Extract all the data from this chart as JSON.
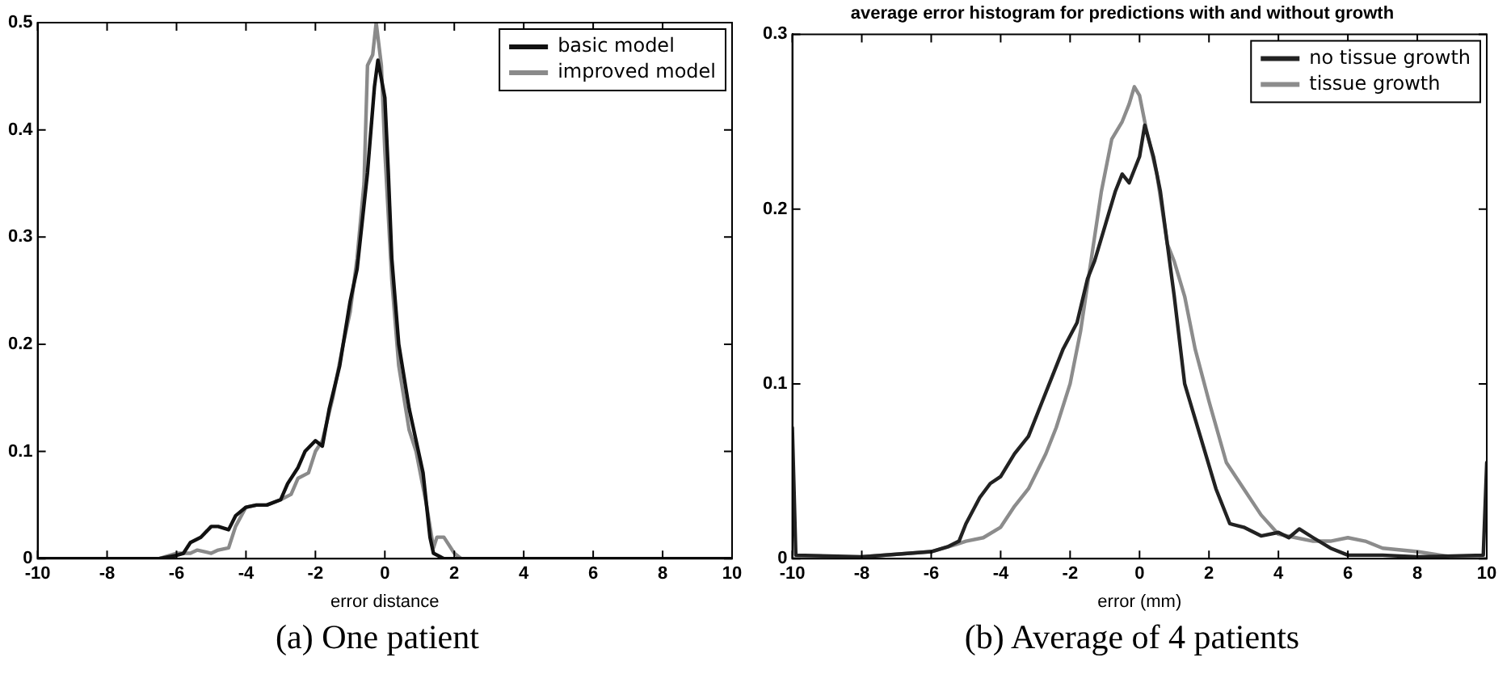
{
  "chart_data": [
    {
      "type": "line",
      "xlabel": "error distance",
      "xlim": [
        -10,
        10
      ],
      "xticks": [
        -10,
        -8,
        -6,
        -4,
        -2,
        0,
        2,
        4,
        6,
        8,
        10
      ],
      "ylim": [
        0,
        0.5
      ],
      "yticks": [
        0,
        0.1,
        0.2,
        0.3,
        0.4,
        0.5
      ],
      "grid": false,
      "legend": "top right",
      "marker": "none",
      "line_style": "solid",
      "annotations": [
        "(a) One patient"
      ],
      "series": [
        {
          "name": "basic model",
          "color": "#111111",
          "x": [
            -10,
            -6.5,
            -6,
            -5.8,
            -5.6,
            -5.3,
            -5,
            -4.8,
            -4.5,
            -4.3,
            -4,
            -3.7,
            -3.4,
            -3,
            -2.8,
            -2.5,
            -2.3,
            -2,
            -1.8,
            -1.6,
            -1.3,
            -1,
            -0.8,
            -0.5,
            -0.3,
            -0.2,
            0,
            0.1,
            0.2,
            0.4,
            0.7,
            0.9,
            1.1,
            1.3,
            1.4,
            1.7,
            10
          ],
          "values": [
            0,
            0,
            0.003,
            0.005,
            0.015,
            0.02,
            0.03,
            0.03,
            0.027,
            0.04,
            0.048,
            0.05,
            0.05,
            0.055,
            0.07,
            0.085,
            0.1,
            0.11,
            0.105,
            0.14,
            0.18,
            0.24,
            0.27,
            0.36,
            0.44,
            0.465,
            0.43,
            0.36,
            0.28,
            0.2,
            0.14,
            0.11,
            0.08,
            0.02,
            0.005,
            0,
            0
          ]
        },
        {
          "name": "improved model",
          "color": "#8a8a8a",
          "x": [
            -10,
            -6.5,
            -6,
            -5.6,
            -5.4,
            -5,
            -4.8,
            -4.5,
            -4.3,
            -4,
            -3.7,
            -3.4,
            -3,
            -2.7,
            -2.5,
            -2.2,
            -2,
            -1.8,
            -1.5,
            -1.2,
            -1,
            -0.8,
            -0.6,
            -0.5,
            -0.35,
            -0.25,
            -0.1,
            0,
            0.2,
            0.4,
            0.7,
            0.9,
            1.2,
            1.4,
            1.5,
            1.7,
            2,
            2.2,
            10
          ],
          "values": [
            0,
            0,
            0.005,
            0.005,
            0.008,
            0.005,
            0.008,
            0.01,
            0.03,
            0.048,
            0.05,
            0.05,
            0.055,
            0.06,
            0.075,
            0.08,
            0.1,
            0.11,
            0.15,
            0.2,
            0.23,
            0.28,
            0.35,
            0.46,
            0.47,
            0.5,
            0.46,
            0.38,
            0.26,
            0.18,
            0.12,
            0.1,
            0.05,
            0.01,
            0.02,
            0.02,
            0.005,
            0,
            0
          ]
        }
      ]
    },
    {
      "type": "line",
      "title": "average error histogram for predictions with and without growth",
      "xlabel": "error (mm)",
      "xlim": [
        -10,
        10
      ],
      "xticks": [
        -10,
        -8,
        -6,
        -4,
        -2,
        0,
        2,
        4,
        6,
        8,
        10
      ],
      "ylim": [
        0,
        0.3
      ],
      "yticks": [
        0,
        0.1,
        0.2,
        0.3
      ],
      "grid": false,
      "legend": "top right",
      "marker": "none",
      "line_style": "solid",
      "annotations": [
        "(b) Average of 4 patients"
      ],
      "series": [
        {
          "name": "no tissue growth",
          "color": "#222222",
          "x": [
            -10,
            -9.9,
            -8,
            -6,
            -5.5,
            -5.2,
            -5,
            -4.6,
            -4.3,
            -4,
            -3.6,
            -3.2,
            -2.8,
            -2.5,
            -2.2,
            -1.8,
            -1.5,
            -1.3,
            -1,
            -0.7,
            -0.5,
            -0.3,
            0,
            0.15,
            0.4,
            0.6,
            0.8,
            1,
            1.3,
            1.6,
            1.9,
            2.2,
            2.6,
            3,
            3.5,
            4,
            4.3,
            4.6,
            5,
            5.5,
            6,
            7,
            8,
            9.9,
            10
          ],
          "values": [
            0.075,
            0.002,
            0.001,
            0.004,
            0.007,
            0.01,
            0.02,
            0.035,
            0.043,
            0.047,
            0.06,
            0.07,
            0.09,
            0.105,
            0.12,
            0.135,
            0.16,
            0.17,
            0.19,
            0.21,
            0.22,
            0.215,
            0.23,
            0.248,
            0.23,
            0.21,
            0.18,
            0.15,
            0.1,
            0.08,
            0.06,
            0.04,
            0.02,
            0.018,
            0.013,
            0.015,
            0.012,
            0.017,
            0.012,
            0.006,
            0.002,
            0.002,
            0.001,
            0.002,
            0.055
          ]
        },
        {
          "name": "tissue growth",
          "color": "#8c8c8c",
          "x": [
            -10,
            -8,
            -6,
            -5.3,
            -5,
            -4.5,
            -4,
            -3.6,
            -3.2,
            -2.7,
            -2.4,
            -2,
            -1.7,
            -1.4,
            -1.1,
            -0.8,
            -0.5,
            -0.3,
            -0.15,
            0,
            0.2,
            0.5,
            0.8,
            1,
            1.3,
            1.6,
            2,
            2.5,
            3,
            3.5,
            4,
            4.5,
            5,
            5.5,
            6,
            6.5,
            7,
            8,
            9,
            10
          ],
          "values": [
            0,
            0.001,
            0.004,
            0.008,
            0.01,
            0.012,
            0.018,
            0.03,
            0.04,
            0.06,
            0.075,
            0.1,
            0.13,
            0.17,
            0.21,
            0.24,
            0.25,
            0.26,
            0.27,
            0.265,
            0.245,
            0.22,
            0.18,
            0.17,
            0.15,
            0.12,
            0.09,
            0.055,
            0.04,
            0.025,
            0.014,
            0.012,
            0.01,
            0.01,
            0.012,
            0.01,
            0.006,
            0.004,
            0.001,
            0
          ]
        }
      ]
    }
  ]
}
